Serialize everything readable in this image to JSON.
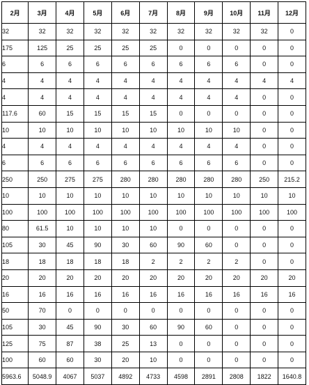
{
  "headers": [
    "2月",
    "3月",
    "4月",
    "5月",
    "6月",
    "7月",
    "8月",
    "9月",
    "10月",
    "11月",
    "12月"
  ],
  "rows": [
    [
      "32",
      "32",
      "32",
      "32",
      "32",
      "32",
      "32",
      "32",
      "32",
      "32",
      "0"
    ],
    [
      "175",
      "125",
      "25",
      "25",
      "25",
      "25",
      "0",
      "0",
      "0",
      "0",
      "0"
    ],
    [
      "6",
      "6",
      "6",
      "6",
      "6",
      "6",
      "6",
      "6",
      "6",
      "0",
      "0"
    ],
    [
      "4",
      "4",
      "4",
      "4",
      "4",
      "4",
      "4",
      "4",
      "4",
      "4",
      "4"
    ],
    [
      "4",
      "4",
      "4",
      "4",
      "4",
      "4",
      "4",
      "4",
      "4",
      "0",
      "0"
    ],
    [
      "117.6",
      "60",
      "15",
      "15",
      "15",
      "15",
      "0",
      "0",
      "0",
      "0",
      "0"
    ],
    [
      "10",
      "10",
      "10",
      "10",
      "10",
      "10",
      "10",
      "10",
      "10",
      "0",
      "0"
    ],
    [
      "4",
      "4",
      "4",
      "4",
      "4",
      "4",
      "4",
      "4",
      "4",
      "0",
      "0"
    ],
    [
      "6",
      "6",
      "6",
      "6",
      "6",
      "6",
      "6",
      "6",
      "6",
      "0",
      "0"
    ],
    [
      "250",
      "250",
      "275",
      "275",
      "280",
      "280",
      "280",
      "280",
      "280",
      "250",
      "215.2"
    ],
    [
      "10",
      "10",
      "10",
      "10",
      "10",
      "10",
      "10",
      "10",
      "10",
      "10",
      "10"
    ],
    [
      "100",
      "100",
      "100",
      "100",
      "100",
      "100",
      "100",
      "100",
      "100",
      "100",
      "100"
    ],
    [
      "80",
      "61.5",
      "10",
      "10",
      "10",
      "10",
      "0",
      "0",
      "0",
      "0",
      "0"
    ],
    [
      "105",
      "30",
      "45",
      "90",
      "30",
      "60",
      "90",
      "60",
      "0",
      "0",
      "0"
    ],
    [
      "18",
      "18",
      "18",
      "18",
      "18",
      "2",
      "2",
      "2",
      "2",
      "0",
      "0"
    ],
    [
      "20",
      "20",
      "20",
      "20",
      "20",
      "20",
      "20",
      "20",
      "20",
      "20",
      "20"
    ],
    [
      "16",
      "16",
      "16",
      "16",
      "16",
      "16",
      "16",
      "16",
      "16",
      "16",
      "16"
    ],
    [
      "50",
      "70",
      "0",
      "0",
      "0",
      "0",
      "0",
      "0",
      "0",
      "0",
      "0"
    ],
    [
      "105",
      "30",
      "45",
      "90",
      "30",
      "60",
      "90",
      "60",
      "0",
      "0",
      "0"
    ],
    [
      "125",
      "75",
      "87",
      "38",
      "25",
      "13",
      "0",
      "0",
      "0",
      "0",
      "0"
    ],
    [
      "100",
      "60",
      "60",
      "30",
      "20",
      "10",
      "0",
      "0",
      "0",
      "0",
      "0"
    ],
    [
      "5963.6",
      "5048.9",
      "4067",
      "5037",
      "4892",
      "4733",
      "4598",
      "2891",
      "2808",
      "1822",
      "1640.8"
    ]
  ]
}
